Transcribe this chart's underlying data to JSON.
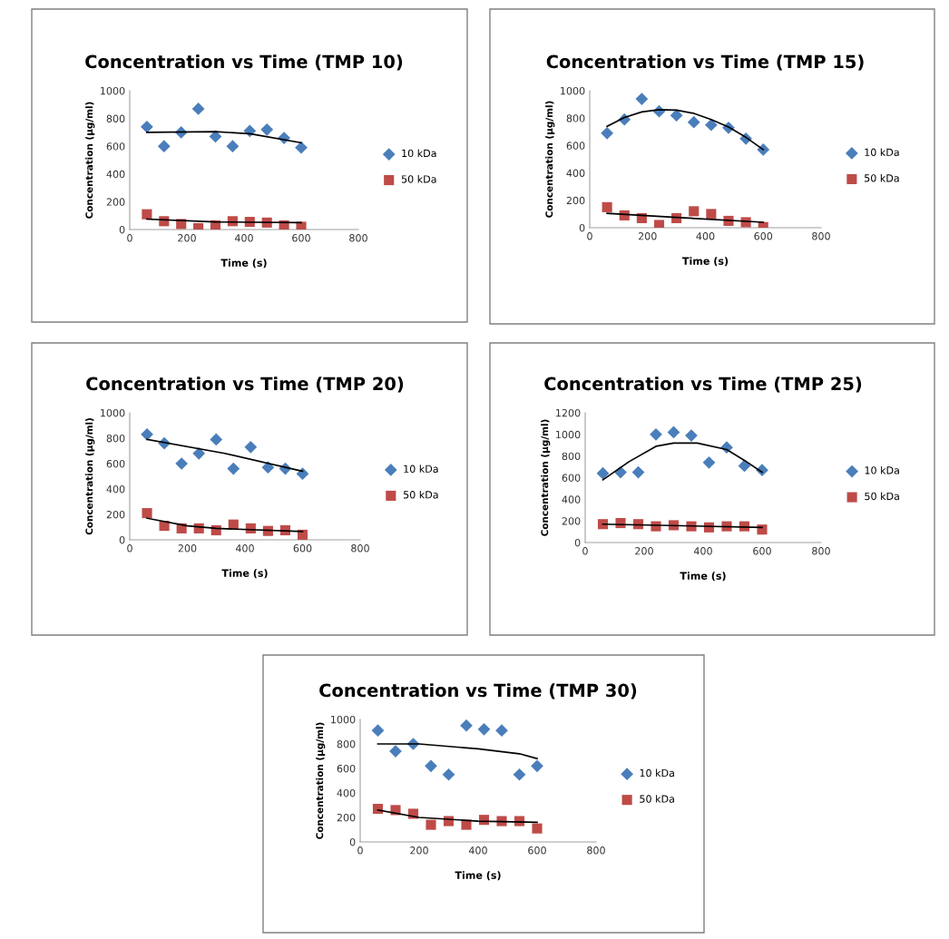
{
  "chart_data": [
    {
      "type": "scatter",
      "title": "Concentration vs Time (TMP 10)",
      "xlabel": "Time (s)",
      "ylabel": "Concentration (µg/ml)",
      "xlim": [
        0,
        800
      ],
      "xticks": [
        0,
        200,
        400,
        600,
        800
      ],
      "ylim": [
        0,
        1000
      ],
      "yticks": [
        0,
        200,
        400,
        600,
        800,
        1000
      ],
      "grid": false,
      "legend": "right",
      "series": [
        {
          "name": "10 kDa",
          "color": "#4a7ebb",
          "marker": "diamond",
          "x": [
            60,
            120,
            180,
            240,
            300,
            360,
            420,
            480,
            540,
            600
          ],
          "values": [
            740,
            600,
            700,
            870,
            670,
            600,
            710,
            720,
            660,
            590
          ]
        },
        {
          "name": "50 kDa",
          "color": "#be4b48",
          "marker": "square",
          "x": [
            60,
            120,
            180,
            240,
            300,
            360,
            420,
            480,
            540,
            600
          ],
          "values": [
            110,
            60,
            40,
            10,
            30,
            60,
            55,
            50,
            30,
            20
          ]
        },
        {
          "type": "line",
          "color": "#000000",
          "marker": "none",
          "x": [
            60,
            300,
            420,
            600
          ],
          "values": [
            700,
            705,
            690,
            625
          ]
        },
        {
          "type": "line",
          "color": "#000000",
          "marker": "none",
          "x": [
            60,
            300,
            600
          ],
          "values": [
            75,
            55,
            50
          ]
        }
      ]
    },
    {
      "type": "scatter",
      "title": "Concentration vs Time (TMP 15)",
      "xlabel": "Time (s)",
      "ylabel": "Concentration (µg/ml)",
      "xlim": [
        0,
        800
      ],
      "xticks": [
        0,
        200,
        400,
        600,
        800
      ],
      "ylim": [
        0,
        1000
      ],
      "yticks": [
        0,
        200,
        400,
        600,
        800,
        1000
      ],
      "grid": false,
      "legend": "right",
      "series": [
        {
          "name": "10 kDa",
          "color": "#4a7ebb",
          "marker": "diamond",
          "x": [
            60,
            120,
            180,
            240,
            300,
            360,
            420,
            480,
            540,
            600
          ],
          "values": [
            690,
            790,
            940,
            850,
            820,
            770,
            750,
            730,
            650,
            570
          ]
        },
        {
          "name": "50 kDa",
          "color": "#be4b48",
          "marker": "square",
          "x": [
            60,
            120,
            180,
            240,
            300,
            360,
            420,
            480,
            540,
            600
          ],
          "values": [
            150,
            90,
            70,
            20,
            70,
            120,
            100,
            50,
            40,
            5
          ]
        },
        {
          "type": "line",
          "color": "#000000",
          "marker": "none",
          "x": [
            60,
            120,
            180,
            240,
            300,
            360,
            420,
            480,
            540,
            600
          ],
          "values": [
            740,
            805,
            845,
            862,
            858,
            835,
            790,
            735,
            660,
            570
          ]
        },
        {
          "type": "line",
          "color": "#000000",
          "marker": "none",
          "x": [
            60,
            300,
            600
          ],
          "values": [
            105,
            75,
            40
          ]
        }
      ]
    },
    {
      "type": "scatter",
      "title": "Concentration vs Time (TMP 20)",
      "xlabel": "Time (s)",
      "ylabel": "Concentration (µg/ml)",
      "xlim": [
        0,
        800
      ],
      "xticks": [
        0,
        200,
        400,
        600,
        800
      ],
      "ylim": [
        0,
        1000
      ],
      "yticks": [
        0,
        200,
        400,
        600,
        800,
        1000
      ],
      "grid": false,
      "legend": "right",
      "series": [
        {
          "name": "10 kDa",
          "color": "#4a7ebb",
          "marker": "diamond",
          "x": [
            60,
            120,
            180,
            240,
            300,
            360,
            420,
            480,
            540,
            600
          ],
          "values": [
            830,
            760,
            600,
            680,
            790,
            560,
            730,
            570,
            560,
            520
          ]
        },
        {
          "name": "50 kDa",
          "color": "#be4b48",
          "marker": "square",
          "x": [
            60,
            120,
            180,
            240,
            300,
            360,
            420,
            480,
            540,
            600
          ],
          "values": [
            210,
            110,
            90,
            90,
            75,
            120,
            90,
            70,
            75,
            40
          ]
        },
        {
          "type": "line",
          "color": "#000000",
          "marker": "none",
          "x": [
            60,
            330,
            600
          ],
          "values": [
            790,
            680,
            540
          ]
        },
        {
          "type": "line",
          "color": "#000000",
          "marker": "none",
          "x": [
            60,
            200,
            300,
            600
          ],
          "values": [
            170,
            110,
            90,
            65
          ]
        }
      ]
    },
    {
      "type": "scatter",
      "title": "Concentration vs Time (TMP 25)",
      "xlabel": "Time (s)",
      "ylabel": "Concentration (µg/ml)",
      "xlim": [
        0,
        800
      ],
      "xticks": [
        0,
        200,
        400,
        600,
        800
      ],
      "ylim": [
        0,
        1200
      ],
      "yticks": [
        0,
        200,
        400,
        600,
        800,
        1000,
        1200
      ],
      "grid": false,
      "legend": "right",
      "series": [
        {
          "name": "10 kDa",
          "color": "#4a7ebb",
          "marker": "diamond",
          "x": [
            60,
            120,
            180,
            240,
            300,
            360,
            420,
            480,
            540,
            600
          ],
          "values": [
            640,
            650,
            650,
            1000,
            1020,
            990,
            740,
            880,
            710,
            670
          ]
        },
        {
          "name": "50 kDa",
          "color": "#be4b48",
          "marker": "square",
          "x": [
            60,
            120,
            180,
            240,
            300,
            360,
            420,
            480,
            540,
            600
          ],
          "values": [
            170,
            180,
            170,
            150,
            160,
            150,
            140,
            150,
            150,
            120
          ]
        },
        {
          "type": "line",
          "color": "#000000",
          "marker": "none",
          "x": [
            60,
            150,
            240,
            300,
            380,
            480,
            540,
            600
          ],
          "values": [
            580,
            750,
            890,
            920,
            920,
            860,
            760,
            650
          ]
        },
        {
          "type": "line",
          "color": "#000000",
          "marker": "none",
          "x": [
            60,
            600
          ],
          "values": [
            170,
            140
          ]
        }
      ]
    },
    {
      "type": "scatter",
      "title": "Concentration vs Time (TMP 30)",
      "xlabel": "Time (s)",
      "ylabel": "Concentration (µg/ml)",
      "xlim": [
        0,
        800
      ],
      "xticks": [
        0,
        200,
        400,
        600,
        800
      ],
      "ylim": [
        0,
        1000
      ],
      "yticks": [
        0,
        200,
        400,
        600,
        800,
        1000
      ],
      "grid": false,
      "legend": "right",
      "series": [
        {
          "name": "10 kDa",
          "color": "#4a7ebb",
          "marker": "diamond",
          "x": [
            60,
            120,
            180,
            240,
            300,
            360,
            420,
            480,
            540,
            600
          ],
          "values": [
            910,
            740,
            800,
            620,
            550,
            950,
            920,
            910,
            550,
            620
          ]
        },
        {
          "name": "50 kDa",
          "color": "#be4b48",
          "marker": "square",
          "x": [
            60,
            120,
            180,
            240,
            300,
            360,
            420,
            480,
            540,
            600
          ],
          "values": [
            270,
            260,
            230,
            140,
            170,
            140,
            180,
            170,
            170,
            110
          ]
        },
        {
          "type": "line",
          "color": "#000000",
          "marker": "none",
          "x": [
            60,
            200,
            400,
            540,
            600
          ],
          "values": [
            800,
            800,
            760,
            720,
            680
          ]
        },
        {
          "type": "line",
          "color": "#000000",
          "marker": "none",
          "x": [
            60,
            200,
            400,
            600
          ],
          "values": [
            260,
            200,
            170,
            160
          ]
        }
      ]
    }
  ]
}
